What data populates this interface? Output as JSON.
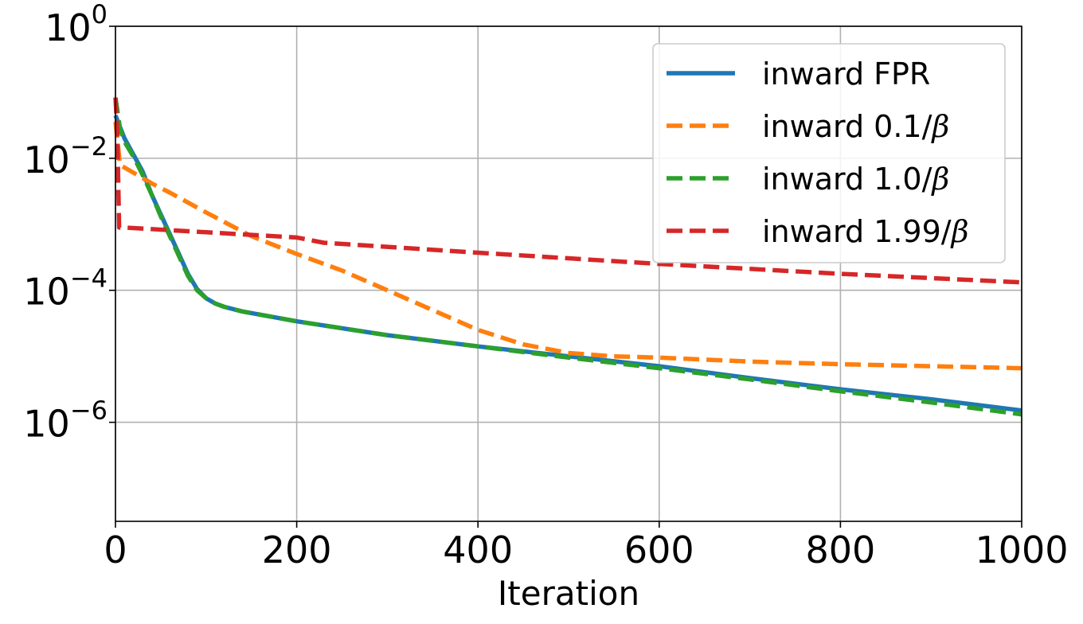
{
  "chart_data": {
    "type": "line",
    "title": "",
    "xlabel": "Iteration",
    "ylabel": "",
    "xlim": [
      0,
      1000
    ],
    "ylim_log10": [
      -7.5,
      0
    ],
    "y_scale": "log",
    "grid": true,
    "legend_position": "top-right",
    "x_ticks": [
      "0",
      "200",
      "400",
      "600",
      "800",
      "1000"
    ],
    "x_tick_values": [
      0,
      200,
      400,
      600,
      800,
      1000
    ],
    "y_ticks": [
      {
        "base": "10",
        "exp": "0",
        "value_log10": 0
      },
      {
        "base": "10",
        "exp": "−2",
        "value_log10": -2
      },
      {
        "base": "10",
        "exp": "−4",
        "value_log10": -4
      },
      {
        "base": "10",
        "exp": "−6",
        "value_log10": -6
      }
    ],
    "series": [
      {
        "name": "inward FPR",
        "label_prefix": "inward FPR",
        "label_suffix": "",
        "color": "#1f77b4",
        "dash": "solid",
        "points": [
          [
            0,
            -1.35
          ],
          [
            10,
            -1.7
          ],
          [
            20,
            -1.95
          ],
          [
            30,
            -2.2
          ],
          [
            40,
            -2.55
          ],
          [
            50,
            -2.85
          ],
          [
            60,
            -3.15
          ],
          [
            70,
            -3.45
          ],
          [
            80,
            -3.75
          ],
          [
            90,
            -3.98
          ],
          [
            100,
            -4.12
          ],
          [
            110,
            -4.2
          ],
          [
            120,
            -4.25
          ],
          [
            140,
            -4.32
          ],
          [
            160,
            -4.37
          ],
          [
            200,
            -4.47
          ],
          [
            300,
            -4.68
          ],
          [
            400,
            -4.85
          ],
          [
            500,
            -5.0
          ],
          [
            600,
            -5.15
          ],
          [
            700,
            -5.33
          ],
          [
            800,
            -5.5
          ],
          [
            900,
            -5.65
          ],
          [
            1000,
            -5.82
          ]
        ]
      },
      {
        "name": "inward 0.1/β",
        "label_prefix": "inward 0.1/",
        "label_suffix": "β",
        "color": "#ff7f0e",
        "dash": "dashed",
        "points": [
          [
            0,
            -1.45
          ],
          [
            5,
            -2.1
          ],
          [
            20,
            -2.22
          ],
          [
            40,
            -2.38
          ],
          [
            60,
            -2.52
          ],
          [
            100,
            -2.82
          ],
          [
            150,
            -3.18
          ],
          [
            200,
            -3.45
          ],
          [
            250,
            -3.7
          ],
          [
            300,
            -4.0
          ],
          [
            350,
            -4.3
          ],
          [
            400,
            -4.6
          ],
          [
            450,
            -4.82
          ],
          [
            500,
            -4.95
          ],
          [
            550,
            -5.0
          ],
          [
            600,
            -5.02
          ],
          [
            700,
            -5.08
          ],
          [
            800,
            -5.12
          ],
          [
            900,
            -5.15
          ],
          [
            1000,
            -5.18
          ]
        ]
      },
      {
        "name": "inward 1.0/β",
        "label_prefix": "inward 1.0/",
        "label_suffix": "β",
        "color": "#2ca02c",
        "dash": "dashed",
        "points": [
          [
            0,
            -1.08
          ],
          [
            5,
            -1.55
          ],
          [
            10,
            -1.75
          ],
          [
            20,
            -1.98
          ],
          [
            30,
            -2.25
          ],
          [
            40,
            -2.55
          ],
          [
            50,
            -2.88
          ],
          [
            60,
            -3.18
          ],
          [
            70,
            -3.48
          ],
          [
            80,
            -3.78
          ],
          [
            90,
            -4.0
          ],
          [
            100,
            -4.12
          ],
          [
            110,
            -4.2
          ],
          [
            120,
            -4.25
          ],
          [
            140,
            -4.32
          ],
          [
            160,
            -4.37
          ],
          [
            200,
            -4.47
          ],
          [
            300,
            -4.68
          ],
          [
            400,
            -4.85
          ],
          [
            500,
            -5.02
          ],
          [
            600,
            -5.18
          ],
          [
            700,
            -5.35
          ],
          [
            800,
            -5.53
          ],
          [
            900,
            -5.7
          ],
          [
            1000,
            -5.88
          ]
        ]
      },
      {
        "name": "inward 1.99/β",
        "label_prefix": "inward 1.99/",
        "label_suffix": "β",
        "color": "#d62728",
        "dash": "dashed",
        "points": [
          [
            0,
            -1.08
          ],
          [
            2,
            -1.6
          ],
          [
            4,
            -3.05
          ],
          [
            10,
            -3.05
          ],
          [
            100,
            -3.12
          ],
          [
            200,
            -3.2
          ],
          [
            230,
            -3.28
          ],
          [
            400,
            -3.43
          ],
          [
            600,
            -3.6
          ],
          [
            800,
            -3.75
          ],
          [
            1000,
            -3.88
          ]
        ]
      }
    ]
  }
}
